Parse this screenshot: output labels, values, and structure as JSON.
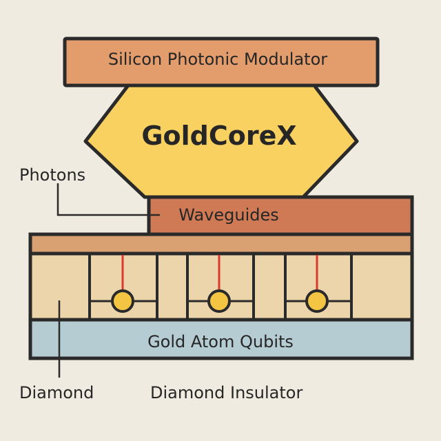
{
  "diagram": {
    "top_block": {
      "label": "Silicon Photonic Modulator",
      "color": "#e39c6c"
    },
    "core": {
      "label": "GoldCoreX",
      "color": "#f8d160"
    },
    "waveguides": {
      "label": "Waveguides",
      "color": "#cf7a55"
    },
    "substrate_band": {
      "color": "#d9a071"
    },
    "diamond_layer": {
      "color": "#ecd4ab"
    },
    "qubit_layer": {
      "label": "Gold Atom Qubits",
      "color": "#b5ccd3"
    },
    "qubit_dot": {
      "color": "#f4c443"
    },
    "connector": {
      "color": "#d93a2b"
    },
    "outline": {
      "color": "#2a2a2a"
    },
    "callouts": {
      "photons": "Photons",
      "diamond": "Diamond",
      "diamond_insulator": "Diamond Insulator"
    }
  }
}
